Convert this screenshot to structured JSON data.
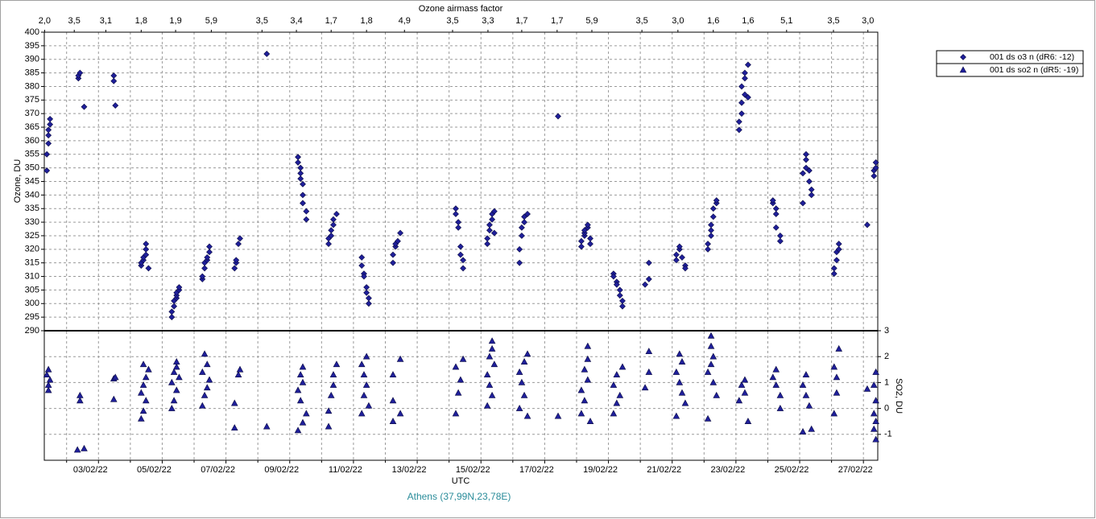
{
  "chart_data": {
    "type": "scatter",
    "top_axis": {
      "label": "Ozone airmass factor",
      "ticks": [
        {
          "value": 1.31,
          "label": "2,0"
        },
        {
          "value": 2.24,
          "label": "3,5"
        },
        {
          "value": 3.23,
          "label": "3,1"
        },
        {
          "value": 4.34,
          "label": "1,8"
        },
        {
          "value": 5.42,
          "label": "1,9"
        },
        {
          "value": 6.54,
          "label": "5,9"
        },
        {
          "value": 8.13,
          "label": "3,5"
        },
        {
          "value": 9.21,
          "label": "3,4"
        },
        {
          "value": 10.3,
          "label": "1,7"
        },
        {
          "value": 11.41,
          "label": "1,8"
        },
        {
          "value": 12.6,
          "label": "4,9"
        },
        {
          "value": 14.11,
          "label": "3,5"
        },
        {
          "value": 15.22,
          "label": "3,3"
        },
        {
          "value": 16.28,
          "label": "1,7"
        },
        {
          "value": 17.39,
          "label": "1,7"
        },
        {
          "value": 18.48,
          "label": "5,9"
        },
        {
          "value": 20.05,
          "label": "3,5"
        },
        {
          "value": 21.18,
          "label": "3,0"
        },
        {
          "value": 22.29,
          "label": "1,6"
        },
        {
          "value": 23.38,
          "label": "1,6"
        },
        {
          "value": 24.59,
          "label": "5,1"
        },
        {
          "value": 26.06,
          "label": "3,5"
        },
        {
          "value": 27.14,
          "label": "3,0"
        }
      ]
    },
    "x_label": "UTC",
    "y_label": "Ozone, DU",
    "y2_label": "SO2, DU",
    "footer": "Athens (37,99N,23,78E)",
    "xlim": [
      1.3,
      27.45
    ],
    "xticks": [
      {
        "value": 3,
        "label": "03/02/22"
      },
      {
        "value": 5,
        "label": "05/02/22"
      },
      {
        "value": 7,
        "label": "07/02/22"
      },
      {
        "value": 9,
        "label": "09/02/22"
      },
      {
        "value": 11,
        "label": "11/02/22"
      },
      {
        "value": 13,
        "label": "13/02/22"
      },
      {
        "value": 15,
        "label": "15/02/22"
      },
      {
        "value": 17,
        "label": "17/02/22"
      },
      {
        "value": 19,
        "label": "19/02/22"
      },
      {
        "value": 21,
        "label": "21/02/22"
      },
      {
        "value": 23,
        "label": "23/02/22"
      },
      {
        "value": 25,
        "label": "25/02/22"
      },
      {
        "value": 27,
        "label": "27/02/22"
      }
    ],
    "x_minor_ticks": [
      2,
      4,
      6,
      8,
      10,
      12,
      14,
      16,
      18,
      20,
      22,
      24,
      26
    ],
    "ylim": [
      290,
      400
    ],
    "yticks": [
      290,
      295,
      300,
      305,
      310,
      315,
      320,
      325,
      330,
      335,
      340,
      345,
      350,
      355,
      360,
      365,
      370,
      375,
      380,
      385,
      390,
      395,
      400
    ],
    "y2lim": [
      -2,
      3
    ],
    "y2ticks": [
      -1,
      0,
      1,
      2,
      3
    ],
    "grid": true,
    "legend": "top-right",
    "series": [
      {
        "name": "001 ds o3  n (dR6: -12)",
        "color": "#1f1f9a",
        "marker": "diamond",
        "x": [
          1.38,
          1.38,
          1.43,
          1.43,
          1.43,
          1.48,
          1.48,
          2.37,
          2.37,
          2.42,
          2.55,
          3.48,
          3.48,
          3.53,
          4.34,
          4.34,
          4.41,
          4.41,
          4.49,
          4.49,
          4.49,
          4.57,
          5.3,
          5.3,
          5.37,
          5.37,
          5.45,
          5.45,
          5.45,
          5.53,
          5.53,
          6.26,
          6.26,
          6.33,
          6.33,
          6.41,
          6.41,
          6.48,
          6.48,
          7.27,
          7.32,
          7.32,
          7.39,
          7.44,
          8.28,
          9.26,
          9.26,
          9.34,
          9.34,
          9.34,
          9.41,
          9.41,
          9.41,
          9.52,
          9.52,
          10.22,
          10.22,
          10.3,
          10.3,
          10.37,
          10.37,
          10.47,
          11.26,
          11.26,
          11.33,
          11.33,
          11.41,
          11.41,
          11.48,
          11.48,
          12.24,
          12.24,
          12.32,
          12.32,
          12.39,
          12.47,
          14.21,
          14.21,
          14.29,
          14.29,
          14.36,
          14.36,
          14.44,
          14.44,
          15.2,
          15.2,
          15.27,
          15.27,
          15.35,
          15.35,
          15.42,
          15.42,
          16.21,
          16.21,
          16.28,
          16.28,
          16.36,
          16.36,
          16.46,
          17.42,
          18.15,
          18.15,
          18.25,
          18.25,
          18.25,
          18.35,
          18.35,
          18.43,
          18.43,
          19.16,
          19.16,
          19.26,
          19.26,
          19.36,
          19.36,
          19.44,
          19.44,
          20.15,
          20.27,
          20.27,
          21.13,
          21.13,
          21.23,
          21.23,
          21.31,
          21.41,
          21.41,
          22.12,
          22.12,
          22.22,
          22.22,
          22.22,
          22.29,
          22.29,
          22.39,
          22.39,
          23.1,
          23.1,
          23.18,
          23.18,
          23.28,
          23.18,
          23.28,
          23.28,
          23.38,
          23.38,
          24.16,
          24.16,
          24.26,
          24.26,
          24.26,
          24.39,
          24.39,
          25.1,
          25.37,
          25.1,
          25.2,
          25.2,
          25.2,
          25.3,
          25.3,
          25.37,
          26.08,
          26.08,
          26.16,
          26.16,
          26.23,
          26.23,
          27.12,
          27.33,
          27.33,
          27.39,
          27.39
        ],
        "values": [
          349,
          355,
          359,
          362,
          364,
          366,
          368,
          383,
          384,
          385,
          372.5,
          382,
          384,
          373,
          314,
          315,
          316,
          317,
          318,
          320,
          322,
          313,
          295,
          297,
          299,
          301,
          302,
          303,
          304,
          305,
          306,
          309,
          310,
          313,
          315,
          316,
          317,
          319,
          321,
          313,
          315,
          316,
          322,
          324,
          392,
          354,
          352,
          350,
          348,
          346,
          344,
          340,
          337,
          334,
          331,
          322,
          324,
          325,
          327,
          329,
          331,
          333,
          317,
          314,
          311,
          310,
          306,
          304,
          302,
          300,
          315,
          318,
          321,
          322,
          323,
          326,
          335,
          333,
          330,
          328,
          321,
          318,
          316,
          313,
          322,
          324,
          327,
          329,
          331,
          333,
          334,
          326,
          315,
          320,
          325,
          328,
          330,
          332,
          333,
          369,
          321,
          323,
          325,
          326,
          327,
          328,
          329,
          324,
          322,
          311,
          310,
          308,
          307,
          305,
          303,
          301,
          299,
          307,
          309,
          315,
          316,
          318,
          320,
          321,
          317,
          314,
          313,
          320,
          322,
          325,
          327,
          329,
          332,
          335,
          337,
          338,
          364,
          367,
          370,
          374,
          377,
          380,
          383,
          385,
          388,
          376,
          337,
          338,
          335,
          333,
          328,
          325,
          323,
          337,
          342,
          348,
          350,
          353,
          355,
          349,
          345,
          340,
          311,
          313,
          316,
          319,
          320,
          322,
          329,
          347,
          349,
          352,
          350
        ]
      },
      {
        "name": "001 ds so2 n (dR5: -19)",
        "color": "#1f1f9a",
        "marker": "triangle",
        "axis": "y2",
        "x": [
          1.43,
          1.43,
          1.48,
          1.38,
          1.43,
          2.42,
          2.42,
          2.34,
          2.55,
          3.48,
          3.48,
          3.53,
          4.34,
          4.41,
          4.49,
          4.34,
          4.41,
          4.49,
          4.57,
          4.41,
          5.3,
          5.37,
          5.45,
          5.3,
          5.53,
          5.37,
          5.45,
          5.45,
          6.26,
          6.33,
          6.41,
          6.48,
          6.26,
          6.41,
          6.33,
          7.27,
          7.27,
          7.39,
          7.44,
          8.28,
          9.26,
          9.41,
          9.52,
          9.34,
          9.26,
          9.41,
          9.34,
          9.41,
          10.22,
          10.22,
          10.3,
          10.37,
          10.37,
          10.47,
          11.26,
          11.48,
          11.33,
          11.41,
          11.33,
          11.26,
          11.41,
          12.24,
          12.47,
          12.24,
          12.24,
          12.47,
          14.21,
          14.29,
          14.36,
          14.21,
          14.44,
          15.2,
          15.35,
          15.27,
          15.2,
          15.42,
          15.27,
          15.35,
          15.35,
          16.46,
          16.21,
          16.36,
          16.28,
          16.21,
          16.36,
          16.46,
          17.42,
          18.43,
          18.15,
          18.25,
          18.15,
          18.35,
          18.25,
          18.35,
          18.35,
          19.16,
          19.26,
          19.36,
          19.16,
          19.26,
          19.44,
          20.15,
          20.27,
          20.27,
          21.13,
          21.41,
          21.31,
          21.23,
          21.13,
          21.31,
          21.23,
          22.12,
          22.39,
          22.29,
          22.12,
          22.22,
          22.29,
          22.22,
          22.22,
          23.38,
          23.1,
          23.28,
          23.18,
          23.28,
          24.39,
          24.39,
          24.26,
          24.16,
          24.26,
          25.1,
          25.37,
          25.3,
          25.2,
          25.1,
          25.2,
          26.08,
          26.16,
          26.16,
          26.08,
          26.23,
          27.12,
          27.39,
          27.33,
          27.39,
          27.33,
          27.39,
          27.33,
          27.39
        ],
        "values": [
          0.7,
          0.9,
          1.1,
          1.3,
          1.5,
          0.3,
          0.5,
          -1.6,
          -1.55,
          0.35,
          1.15,
          1.2,
          -0.4,
          -0.1,
          0.3,
          0.6,
          0.9,
          1.2,
          1.5,
          1.7,
          0,
          0.3,
          0.7,
          1,
          1.2,
          1.4,
          1.6,
          1.8,
          0.1,
          0.5,
          0.8,
          1.1,
          1.4,
          1.7,
          2.1,
          -0.75,
          0.2,
          1.3,
          1.5,
          -0.7,
          -0.85,
          -0.55,
          -0.2,
          0.3,
          0.7,
          1,
          1.3,
          1.6,
          -0.7,
          -0.1,
          0.5,
          0.9,
          1.3,
          1.7,
          -0.2,
          0.1,
          0.5,
          0.9,
          1.3,
          1.7,
          2,
          -0.5,
          -0.2,
          0.3,
          1.3,
          1.9,
          -0.2,
          0.6,
          1.1,
          1.6,
          1.9,
          0.1,
          0.5,
          0.9,
          1.3,
          1.7,
          2,
          2.3,
          2.6,
          -0.3,
          0,
          0.5,
          1,
          1.4,
          1.8,
          2.1,
          -0.3,
          -0.5,
          -0.2,
          0.3,
          0.7,
          1.1,
          1.5,
          1.9,
          2.4,
          -0.2,
          0.2,
          0.5,
          0.9,
          1.3,
          1.6,
          0.8,
          1.4,
          2.2,
          -0.3,
          0.2,
          0.6,
          1,
          1.4,
          1.8,
          2.1,
          -0.4,
          0.5,
          1,
          1.4,
          1.7,
          2,
          2.4,
          2.8,
          -0.5,
          0.3,
          0.6,
          0.9,
          1.1,
          0,
          0.5,
          0.9,
          1.2,
          1.5,
          -0.9,
          -0.8,
          0.1,
          0.5,
          0.9,
          1.3,
          -0.2,
          0.6,
          1.2,
          1.6,
          2.3,
          0.75,
          -1.2,
          -0.8,
          -0.5,
          -0.2,
          0.3,
          0.9,
          1.4
        ]
      }
    ]
  }
}
